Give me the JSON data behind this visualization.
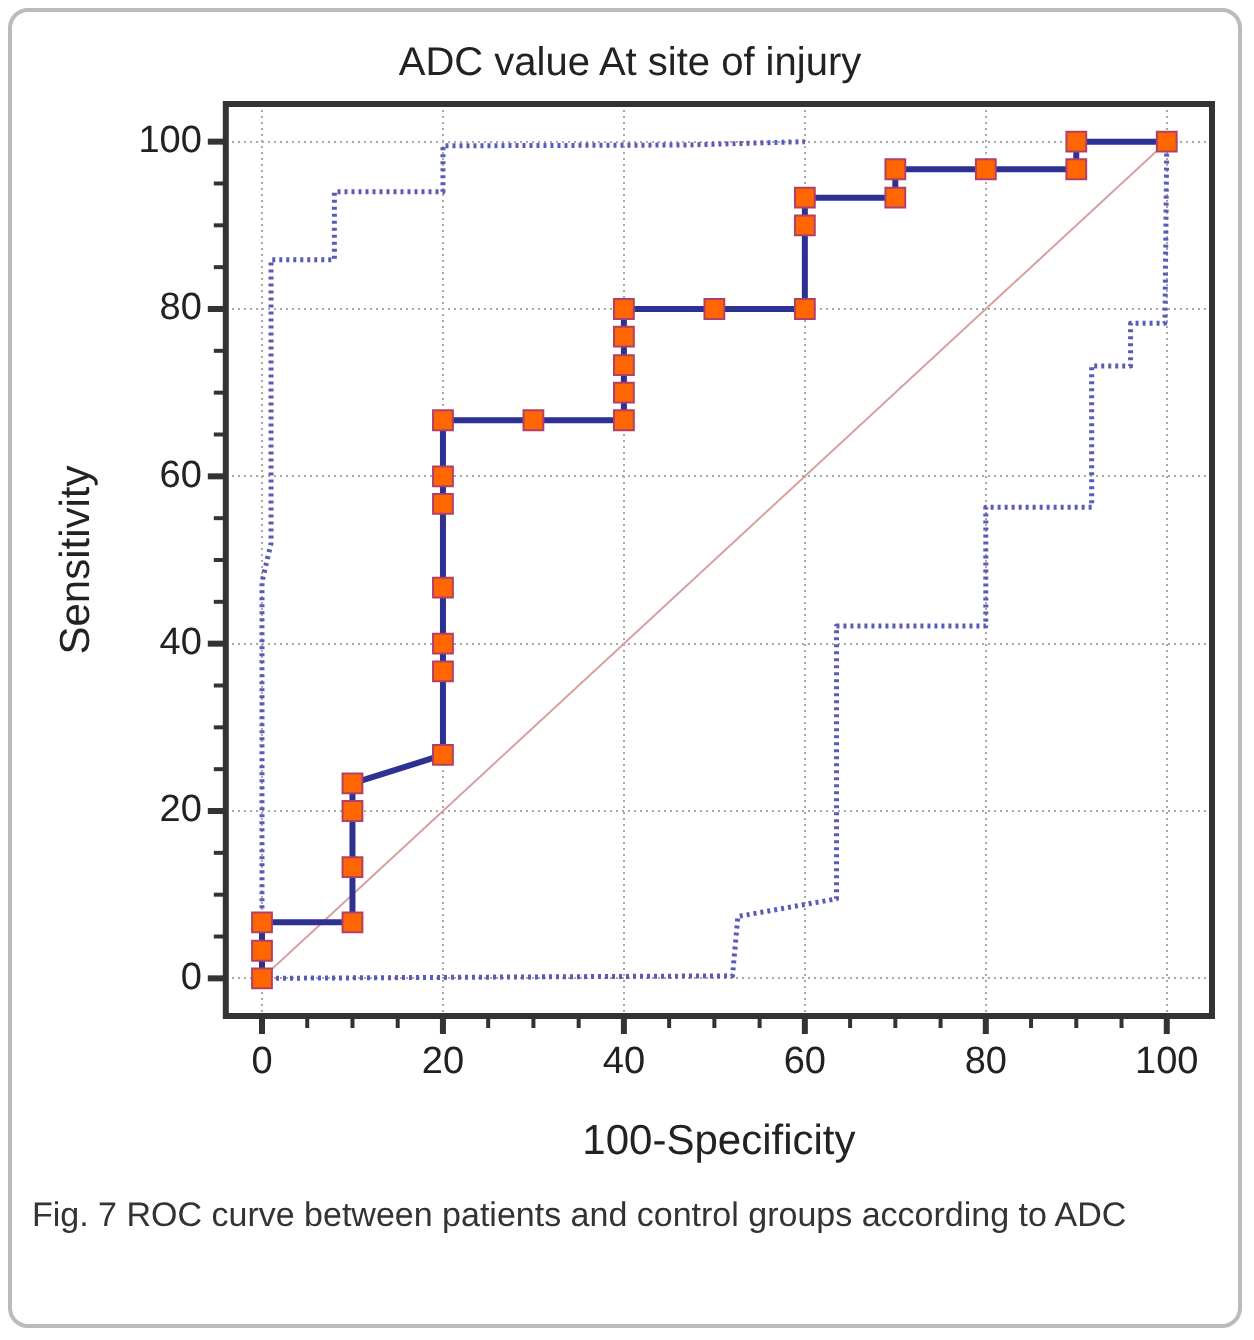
{
  "chart_data": {
    "type": "line",
    "title": "ADC value At site of injury",
    "xlabel": "100-Specificity",
    "ylabel": "Sensitivity",
    "xlim": [
      -4,
      105
    ],
    "ylim": [
      -4.5,
      104.5
    ],
    "xticks": [
      0,
      {
        "value": 5,
        "label": null
      },
      20,
      {
        "value": 10,
        "label": null
      },
      {
        "value": 15,
        "label": null
      },
      {
        "value": 25,
        "label": null
      },
      {
        "value": 30,
        "label": null
      },
      {
        "value": 35,
        "label": null
      },
      40,
      {
        "value": 45,
        "label": null
      },
      {
        "value": 50,
        "label": null
      },
      {
        "value": 55,
        "label": null
      },
      60,
      {
        "value": 65,
        "label": null
      },
      {
        "value": 70,
        "label": null
      },
      {
        "value": 75,
        "label": null
      },
      80,
      {
        "value": 85,
        "label": null
      },
      {
        "value": 90,
        "label": null
      },
      {
        "value": 95,
        "label": null
      },
      100
    ],
    "yticks": [
      0,
      {
        "value": 5,
        "label": null
      },
      {
        "value": 10,
        "label": null
      },
      {
        "value": 15,
        "label": null
      },
      20,
      {
        "value": 25,
        "label": null
      },
      {
        "value": 30,
        "label": null
      },
      {
        "value": 35,
        "label": null
      },
      40,
      {
        "value": 45,
        "label": null
      },
      {
        "value": 50,
        "label": null
      },
      {
        "value": 55,
        "label": null
      },
      60,
      {
        "value": 65,
        "label": null
      },
      {
        "value": 70,
        "label": null
      },
      {
        "value": 75,
        "label": null
      },
      80,
      {
        "value": 85,
        "label": null
      },
      {
        "value": 90,
        "label": null
      },
      {
        "value": 95,
        "label": null
      },
      100
    ],
    "grid": true,
    "legend": false,
    "series": [
      {
        "color": "#d9a0a0",
        "line_style": "solid",
        "x": [
          0,
          100
        ],
        "values": [
          0,
          100
        ]
      },
      {
        "color": "#5a5ab8",
        "line_style": "dotted",
        "x": [
          0,
          0,
          1,
          1,
          8,
          8,
          20,
          20,
          47,
          60
        ],
        "values": [
          0,
          47.4,
          52,
          85.9,
          85.9,
          94,
          94,
          99.5,
          99.6,
          100
        ]
      },
      {
        "color": "#5a5ab8",
        "line_style": "dotted",
        "x": [
          0,
          52,
          52.6,
          63.5,
          63.5,
          80,
          80,
          91.7,
          91.7,
          96,
          96,
          99.8,
          100
        ],
        "values": [
          0,
          0.3,
          7.4,
          9.5,
          42.1,
          42.1,
          56.3,
          56.3,
          73.2,
          73.2,
          78.3,
          78.3,
          100
        ]
      },
      {
        "color": "#2e3192",
        "marker": "square",
        "colors": [
          "#ff6600",
          "#ff6600",
          "#ff6600",
          "#ff6600",
          "#ff6600",
          "#ff6600",
          "#ff6600",
          "#ff6600",
          "#ff6600",
          "#ff6600",
          "#ff6600",
          "#ff6600",
          "#ff6600",
          "#ff6600",
          "#ff6600",
          "#ff6600",
          "#ff6600",
          "#ff6600",
          "#ff6600",
          "#ff6600",
          "#ff6600",
          "#ff6600",
          "#ff6600",
          "#ff6600",
          "#ff6600",
          "#ff6600",
          "#ff6600",
          "#ff6600",
          "#ff6600",
          "#ff6600"
        ],
        "line_style": "solid",
        "x": [
          0,
          0,
          0,
          10,
          10,
          10,
          10,
          20,
          20,
          20,
          20,
          20,
          20,
          20,
          30,
          40,
          40,
          40,
          40,
          40,
          50,
          60,
          60,
          60,
          70,
          70,
          80,
          90,
          90,
          100
        ],
        "values": [
          0,
          3.3,
          6.7,
          6.7,
          13.3,
          20,
          23.3,
          26.7,
          36.7,
          40,
          46.7,
          56.7,
          60,
          66.7,
          66.7,
          66.7,
          70,
          73.3,
          76.7,
          80,
          80,
          80,
          90,
          93.3,
          93.3,
          96.7,
          96.7,
          96.7,
          100,
          100
        ]
      }
    ],
    "annotations": [
      "Fig. 7 ROC curve between patients and control groups according to ADC"
    ]
  }
}
